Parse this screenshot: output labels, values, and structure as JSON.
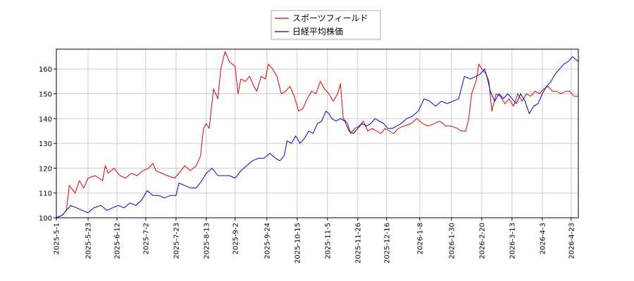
{
  "chart_data": {
    "type": "line",
    "title": "",
    "xlabel": "",
    "ylabel": "",
    "x_range": [
      "2025-05-01",
      "2026-04-28"
    ],
    "ylim": [
      100,
      168
    ],
    "y_ticks": [
      100,
      110,
      120,
      130,
      140,
      150,
      160
    ],
    "x_ticks": [
      "2025-5-1",
      "2025-5-23",
      "2025-6-12",
      "2025-7-2",
      "2025-7-23",
      "2025-8-13",
      "2025-9-2",
      "2025-9-24",
      "2025-10-15",
      "2025-11-5",
      "2025-11-26",
      "2025-12-16",
      "2026-1-8",
      "2026-1-30",
      "2026-2-20",
      "2026-3-13",
      "2026-4-3",
      "2026-4-23"
    ],
    "grid": true,
    "legend_position": "top-center",
    "series": [
      {
        "name": "スポーツフィールド",
        "color": "#dd0000",
        "points": [
          [
            "2025-05-01",
            100
          ],
          [
            "2025-05-05",
            101
          ],
          [
            "2025-05-08",
            103
          ],
          [
            "2025-05-10",
            113
          ],
          [
            "2025-05-14",
            110
          ],
          [
            "2025-05-17",
            115
          ],
          [
            "2025-05-20",
            112
          ],
          [
            "2025-05-23",
            116
          ],
          [
            "2025-05-28",
            117
          ],
          [
            "2025-06-02",
            115
          ],
          [
            "2025-06-04",
            121
          ],
          [
            "2025-06-06",
            118
          ],
          [
            "2025-06-10",
            120
          ],
          [
            "2025-06-14",
            117
          ],
          [
            "2025-06-18",
            116
          ],
          [
            "2025-06-22",
            118
          ],
          [
            "2025-06-26",
            117
          ],
          [
            "2025-06-30",
            119
          ],
          [
            "2025-07-04",
            120
          ],
          [
            "2025-07-07",
            122
          ],
          [
            "2025-07-09",
            119
          ],
          [
            "2025-07-13",
            118
          ],
          [
            "2025-07-17",
            117
          ],
          [
            "2025-07-22",
            116
          ],
          [
            "2025-07-25",
            118
          ],
          [
            "2025-07-29",
            121
          ],
          [
            "2025-08-02",
            119
          ],
          [
            "2025-08-06",
            121
          ],
          [
            "2025-08-09",
            125
          ],
          [
            "2025-08-11",
            136
          ],
          [
            "2025-08-13",
            138
          ],
          [
            "2025-08-15",
            136
          ],
          [
            "2025-08-18",
            152
          ],
          [
            "2025-08-21",
            148
          ],
          [
            "2025-08-23",
            160
          ],
          [
            "2025-08-26",
            167
          ],
          [
            "2025-08-29",
            163
          ],
          [
            "2025-09-02",
            161
          ],
          [
            "2025-09-04",
            150
          ],
          [
            "2025-09-06",
            156
          ],
          [
            "2025-09-09",
            155
          ],
          [
            "2025-09-12",
            157
          ],
          [
            "2025-09-15",
            153
          ],
          [
            "2025-09-17",
            151
          ],
          [
            "2025-09-20",
            157
          ],
          [
            "2025-09-23",
            156
          ],
          [
            "2025-09-25",
            162
          ],
          [
            "2025-09-28",
            160
          ],
          [
            "2025-10-01",
            157
          ],
          [
            "2025-10-04",
            150
          ],
          [
            "2025-10-07",
            151
          ],
          [
            "2025-10-10",
            153
          ],
          [
            "2025-10-13",
            149
          ],
          [
            "2025-10-16",
            143
          ],
          [
            "2025-10-19",
            144
          ],
          [
            "2025-10-22",
            148
          ],
          [
            "2025-10-25",
            151
          ],
          [
            "2025-10-28",
            150
          ],
          [
            "2025-10-31",
            155
          ],
          [
            "2025-11-03",
            152
          ],
          [
            "2025-11-06",
            150
          ],
          [
            "2025-11-09",
            147
          ],
          [
            "2025-11-12",
            150
          ],
          [
            "2025-11-14",
            154
          ],
          [
            "2025-11-16",
            140
          ],
          [
            "2025-11-19",
            138
          ],
          [
            "2025-11-21",
            134
          ],
          [
            "2025-11-24",
            136
          ],
          [
            "2025-11-27",
            137
          ],
          [
            "2025-11-30",
            139
          ],
          [
            "2025-12-03",
            135
          ],
          [
            "2025-12-06",
            136
          ],
          [
            "2025-12-09",
            135
          ],
          [
            "2025-12-12",
            134
          ],
          [
            "2025-12-15",
            136
          ],
          [
            "2025-12-18",
            135
          ],
          [
            "2025-12-21",
            134
          ],
          [
            "2025-12-24",
            136
          ],
          [
            "2025-12-28",
            137
          ],
          [
            "2026-01-02",
            138
          ],
          [
            "2026-01-06",
            140
          ],
          [
            "2026-01-10",
            138
          ],
          [
            "2026-01-14",
            137
          ],
          [
            "2026-01-18",
            138
          ],
          [
            "2026-01-22",
            139
          ],
          [
            "2026-01-26",
            137
          ],
          [
            "2026-01-30",
            137
          ],
          [
            "2026-02-03",
            136
          ],
          [
            "2026-02-06",
            135
          ],
          [
            "2026-02-09",
            135
          ],
          [
            "2026-02-11",
            140
          ],
          [
            "2026-02-13",
            150
          ],
          [
            "2026-02-16",
            155
          ],
          [
            "2026-02-18",
            162
          ],
          [
            "2026-02-20",
            160
          ],
          [
            "2026-02-23",
            158
          ],
          [
            "2026-02-25",
            155
          ],
          [
            "2026-02-27",
            143
          ],
          [
            "2026-03-02",
            150
          ],
          [
            "2026-03-05",
            149
          ],
          [
            "2026-03-08",
            146
          ],
          [
            "2026-03-11",
            148
          ],
          [
            "2026-03-14",
            145
          ],
          [
            "2026-03-17",
            150
          ],
          [
            "2026-03-20",
            147
          ],
          [
            "2026-03-23",
            150
          ],
          [
            "2026-03-26",
            149
          ],
          [
            "2026-03-29",
            151
          ],
          [
            "2026-04-01",
            150
          ],
          [
            "2026-04-04",
            152
          ],
          [
            "2026-04-07",
            153
          ],
          [
            "2026-04-10",
            151
          ],
          [
            "2026-04-13",
            151
          ],
          [
            "2026-04-16",
            150
          ],
          [
            "2026-04-19",
            151
          ],
          [
            "2026-04-22",
            151
          ],
          [
            "2026-04-25",
            149
          ],
          [
            "2026-04-28",
            149
          ]
        ]
      },
      {
        "name": "日経平均株価",
        "color": "#0000cc",
        "points": [
          [
            "2025-05-01",
            100
          ],
          [
            "2025-05-05",
            101
          ],
          [
            "2025-05-08",
            103
          ],
          [
            "2025-05-11",
            105
          ],
          [
            "2025-05-15",
            104
          ],
          [
            "2025-05-19",
            103
          ],
          [
            "2025-05-23",
            102
          ],
          [
            "2025-05-27",
            104
          ],
          [
            "2025-06-01",
            105
          ],
          [
            "2025-06-05",
            103
          ],
          [
            "2025-06-09",
            104
          ],
          [
            "2025-06-13",
            105
          ],
          [
            "2025-06-17",
            104
          ],
          [
            "2025-06-21",
            106
          ],
          [
            "2025-06-25",
            105
          ],
          [
            "2025-06-29",
            107
          ],
          [
            "2025-07-03",
            111
          ],
          [
            "2025-07-07",
            109
          ],
          [
            "2025-07-11",
            109
          ],
          [
            "2025-07-15",
            108
          ],
          [
            "2025-07-19",
            109
          ],
          [
            "2025-07-23",
            109
          ],
          [
            "2025-07-25",
            114
          ],
          [
            "2025-07-29",
            113
          ],
          [
            "2025-08-02",
            112
          ],
          [
            "2025-08-06",
            112
          ],
          [
            "2025-08-10",
            115
          ],
          [
            "2025-08-13",
            118
          ],
          [
            "2025-08-17",
            120
          ],
          [
            "2025-08-21",
            117
          ],
          [
            "2025-08-25",
            117
          ],
          [
            "2025-08-29",
            117
          ],
          [
            "2025-09-02",
            116
          ],
          [
            "2025-09-06",
            119
          ],
          [
            "2025-09-10",
            121
          ],
          [
            "2025-09-14",
            123
          ],
          [
            "2025-09-18",
            124
          ],
          [
            "2025-09-22",
            124
          ],
          [
            "2025-09-26",
            126
          ],
          [
            "2025-09-30",
            124
          ],
          [
            "2025-10-03",
            123
          ],
          [
            "2025-10-06",
            125
          ],
          [
            "2025-10-08",
            131
          ],
          [
            "2025-10-11",
            130
          ],
          [
            "2025-10-14",
            133
          ],
          [
            "2025-10-17",
            130
          ],
          [
            "2025-10-20",
            132
          ],
          [
            "2025-10-23",
            135
          ],
          [
            "2025-10-26",
            134
          ],
          [
            "2025-10-29",
            138
          ],
          [
            "2025-11-01",
            139
          ],
          [
            "2025-11-04",
            143
          ],
          [
            "2025-11-06",
            142
          ],
          [
            "2025-11-08",
            140
          ],
          [
            "2025-11-11",
            139
          ],
          [
            "2025-11-14",
            140
          ],
          [
            "2025-11-17",
            139
          ],
          [
            "2025-11-20",
            135
          ],
          [
            "2025-11-23",
            134
          ],
          [
            "2025-11-26",
            136
          ],
          [
            "2025-11-29",
            138
          ],
          [
            "2025-12-02",
            137
          ],
          [
            "2025-12-05",
            138
          ],
          [
            "2025-12-08",
            140
          ],
          [
            "2025-12-11",
            139
          ],
          [
            "2025-12-14",
            138
          ],
          [
            "2025-12-17",
            136
          ],
          [
            "2025-12-20",
            136
          ],
          [
            "2025-12-23",
            137
          ],
          [
            "2025-12-26",
            138
          ],
          [
            "2025-12-30",
            140
          ],
          [
            "2026-01-03",
            141
          ],
          [
            "2026-01-07",
            143
          ],
          [
            "2026-01-11",
            148
          ],
          [
            "2026-01-15",
            147
          ],
          [
            "2026-01-19",
            145
          ],
          [
            "2026-01-23",
            147
          ],
          [
            "2026-01-27",
            146
          ],
          [
            "2026-01-31",
            147
          ],
          [
            "2026-02-04",
            148
          ],
          [
            "2026-02-08",
            157
          ],
          [
            "2026-02-12",
            156
          ],
          [
            "2026-02-16",
            157
          ],
          [
            "2026-02-19",
            158
          ],
          [
            "2026-02-22",
            160
          ],
          [
            "2026-02-24",
            156
          ],
          [
            "2026-02-26",
            151
          ],
          [
            "2026-03-01",
            147
          ],
          [
            "2026-03-04",
            150
          ],
          [
            "2026-03-07",
            148
          ],
          [
            "2026-03-10",
            150
          ],
          [
            "2026-03-13",
            148
          ],
          [
            "2026-03-16",
            146
          ],
          [
            "2026-03-19",
            150
          ],
          [
            "2026-03-22",
            147
          ],
          [
            "2026-03-25",
            142
          ],
          [
            "2026-03-28",
            145
          ],
          [
            "2026-03-31",
            146
          ],
          [
            "2026-04-03",
            150
          ],
          [
            "2026-04-06",
            153
          ],
          [
            "2026-04-09",
            155
          ],
          [
            "2026-04-12",
            158
          ],
          [
            "2026-04-15",
            160
          ],
          [
            "2026-04-18",
            162
          ],
          [
            "2026-04-21",
            163
          ],
          [
            "2026-04-24",
            165
          ],
          [
            "2026-04-28",
            163
          ]
        ]
      }
    ]
  }
}
